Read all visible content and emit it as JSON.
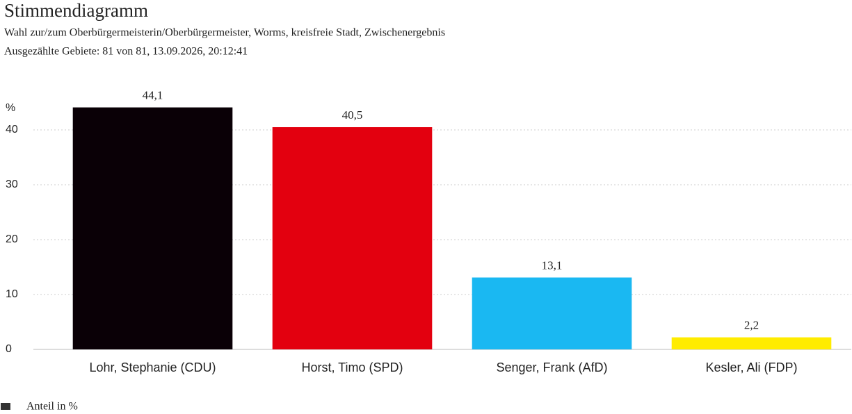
{
  "chart_data": {
    "type": "bar",
    "title": "Stimmendiagramm",
    "subtitle": [
      "Wahl zur/zum Oberbürgermeisterin/Oberbürgermeister, Worms, kreisfreie Stadt, Zwischenergebnis",
      "Ausgezählte Gebiete: 81 von 81, 13.09.2026, 20:12:41"
    ],
    "y_label": "%",
    "categories": [
      "Lohr, Stephanie (CDU)",
      "Horst, Timo (SPD)",
      "Senger, Frank (AfD)",
      "Kesler, Ali (FDP)"
    ],
    "series": [
      {
        "name": "Anteil in %",
        "color": "#333333",
        "values": [
          44.1,
          40.5,
          13.1,
          2.2
        ],
        "value_labels": [
          "44,1",
          "40,5",
          "13,1",
          "2,2"
        ]
      }
    ],
    "colors": [
      "#0a0006",
      "#e3000f",
      "#1ab8f2",
      "#ffec00"
    ],
    "ylim": [
      0,
      45
    ],
    "yticks": [
      0,
      10,
      20,
      30,
      40
    ],
    "grid": true
  }
}
